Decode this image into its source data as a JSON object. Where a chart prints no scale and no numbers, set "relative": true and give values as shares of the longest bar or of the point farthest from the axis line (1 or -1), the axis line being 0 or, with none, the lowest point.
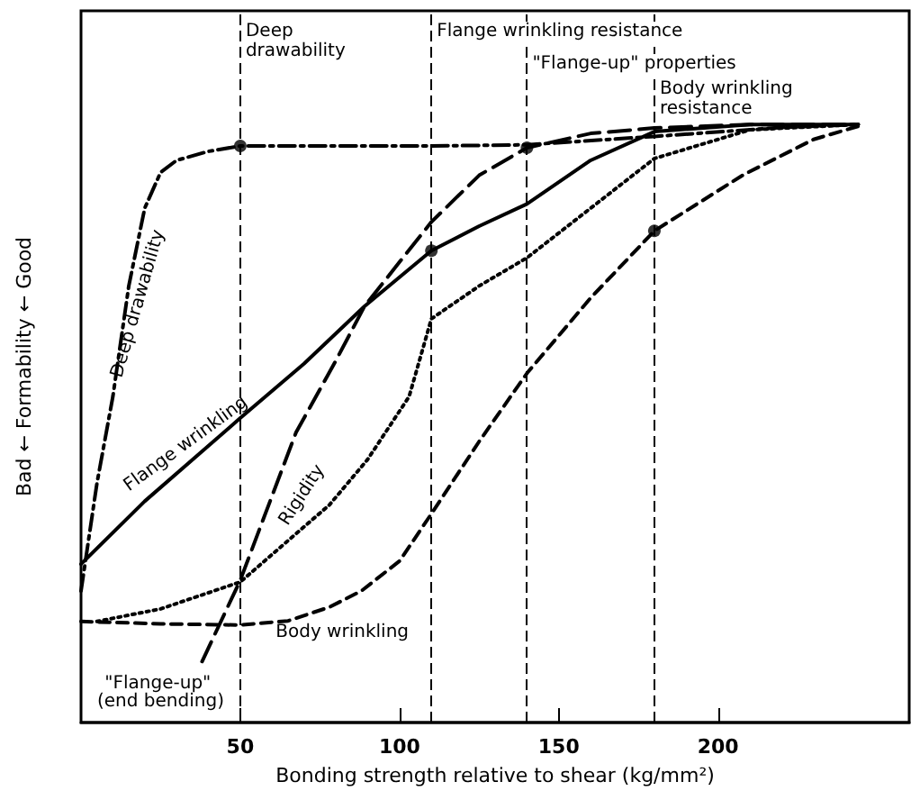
{
  "chart_data": {
    "type": "line",
    "relative": true,
    "xlabel": "Bonding strength relative to shear (kg/mm²)",
    "ylabel": "Bad ← Formability ← Good",
    "xlim": [
      0,
      260
    ],
    "xticks": [
      50,
      100,
      150,
      200
    ],
    "grid": false,
    "legend": false,
    "tick_labels": "x",
    "marker": "none",
    "series": [
      {
        "name": "Deep drawability",
        "color": "#000000",
        "line_style": "dashed",
        "x": [
          0,
          5,
          10,
          15,
          20,
          25,
          30,
          40,
          50,
          80,
          110,
          140,
          180,
          220,
          244
        ],
        "values": [
          0.22,
          0.4,
          0.545,
          0.73,
          0.86,
          0.92,
          0.94,
          0.955,
          0.964,
          0.964,
          0.964,
          0.966,
          0.98,
          0.995,
          1
        ]
      },
      {
        "name": "Flange wrinkling",
        "color": "#000000",
        "line_style": "solid",
        "x": [
          0,
          20,
          50,
          70,
          89,
          110,
          125,
          140,
          160,
          180,
          210,
          244
        ],
        "values": [
          0.265,
          0.37,
          0.509,
          0.6,
          0.696,
          0.789,
          0.83,
          0.867,
          0.94,
          0.988,
          1,
          1
        ]
      },
      {
        "name": "\"Flange-up\" (end bending)",
        "color": "#000000",
        "line_style": "dashed",
        "x": [
          38,
          50,
          67.5,
          80,
          89,
          100,
          110,
          125,
          140,
          160,
          180,
          210,
          244
        ],
        "values": [
          0.102,
          0.238,
          0.485,
          0.605,
          0.696,
          0.77,
          0.837,
          0.915,
          0.961,
          0.985,
          0.994,
          1,
          1
        ]
      },
      {
        "name": "Rigidity",
        "color": "#000000",
        "line_style": "dotted",
        "x": [
          5,
          25,
          50,
          78,
          90,
          103,
          110,
          125,
          140,
          160,
          180,
          210,
          244
        ],
        "values": [
          0.169,
          0.19,
          0.235,
          0.364,
          0.44,
          0.545,
          0.675,
          0.73,
          0.777,
          0.86,
          0.943,
          0.991,
          1
        ]
      },
      {
        "name": "Body wrinkling",
        "color": "#000000",
        "line_style": "dashed",
        "x": [
          0,
          25,
          50,
          65,
          78,
          88,
          100,
          110,
          125,
          140,
          160,
          180,
          208,
          230,
          244
        ],
        "values": [
          0.169,
          0.165,
          0.163,
          0.17,
          0.193,
          0.22,
          0.27,
          0.349,
          0.47,
          0.584,
          0.71,
          0.822,
          0.916,
          0.975,
          0.997
        ]
      },
      {
        "type": "scatter",
        "color": "#000000",
        "marker": "circle",
        "x": [
          50,
          110,
          140,
          180
        ],
        "values": [
          0.964,
          0.789,
          0.961,
          0.822
        ]
      }
    ],
    "ref_lines": [
      {
        "axis": "x",
        "value": 50,
        "label": "Deep drawability",
        "line_style": "dashed",
        "color": "#000000"
      },
      {
        "axis": "x",
        "value": 110,
        "label": "Flange wrinkling resistance",
        "line_style": "dashed",
        "color": "#000000"
      },
      {
        "axis": "x",
        "value": 140,
        "label": "\"Flange-up\" properties",
        "line_style": "dashed",
        "color": "#000000"
      },
      {
        "axis": "x",
        "value": 180,
        "label": "Body wrinkling resistance",
        "line_style": "dashed",
        "color": "#000000"
      }
    ]
  }
}
